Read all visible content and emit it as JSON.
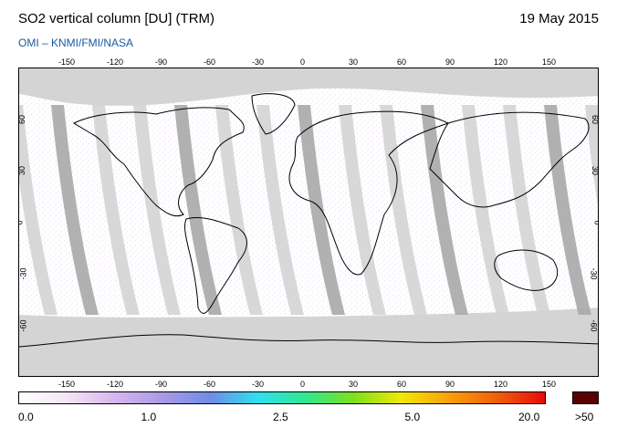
{
  "header": {
    "title": "SO2 vertical column [DU] (TRM)",
    "date": "19 May 2015",
    "credit": "OMI  –  KNMI/FMI/NASA"
  },
  "map": {
    "x_ticks": [
      "-150",
      "-120",
      "-90",
      "-60",
      "-30",
      "0",
      "30",
      "60",
      "90",
      "120",
      "150"
    ],
    "y_ticks": [
      "60",
      "30",
      "0",
      "-30",
      "-60"
    ],
    "colors": {
      "no_data": "#d4d4d4",
      "swath_shadow": "#a8a8a8",
      "coastline": "#000000"
    }
  },
  "colorbar": {
    "labels": [
      "0.0",
      "1.0",
      "2.5",
      "5.0",
      "20.0"
    ],
    "over_label": ">50",
    "over_color": "#5a0000",
    "gradient": [
      "#ffffff",
      "#f4e4f6",
      "#d8b6ee",
      "#a89ae6",
      "#6f8ce8",
      "#2fe0ee",
      "#2fe890",
      "#7fe01a",
      "#f0e80a",
      "#f8a00a",
      "#f0600a",
      "#e80a0a"
    ]
  }
}
